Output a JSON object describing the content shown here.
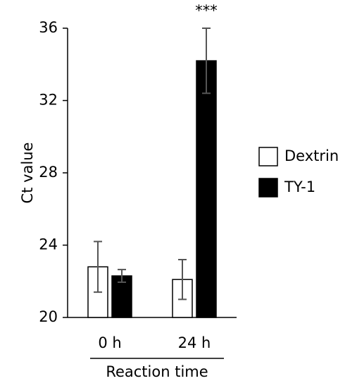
{
  "chart_data": {
    "type": "bar",
    "categories": [
      "0 h",
      "24 h"
    ],
    "series": [
      {
        "name": "Dextrin",
        "color": "#ffffff",
        "values": [
          22.8,
          22.1
        ],
        "errors": [
          1.4,
          1.1
        ]
      },
      {
        "name": "TY-1",
        "color": "#000000",
        "values": [
          22.3,
          34.2
        ],
        "errors": [
          0.35,
          1.8
        ]
      }
    ],
    "ylim": [
      20,
      36
    ],
    "yticks": [
      20,
      24,
      28,
      32,
      36
    ],
    "ylabel": "Ct value",
    "xlabel": "Reaction time",
    "annotation": "***",
    "legend": "right"
  }
}
